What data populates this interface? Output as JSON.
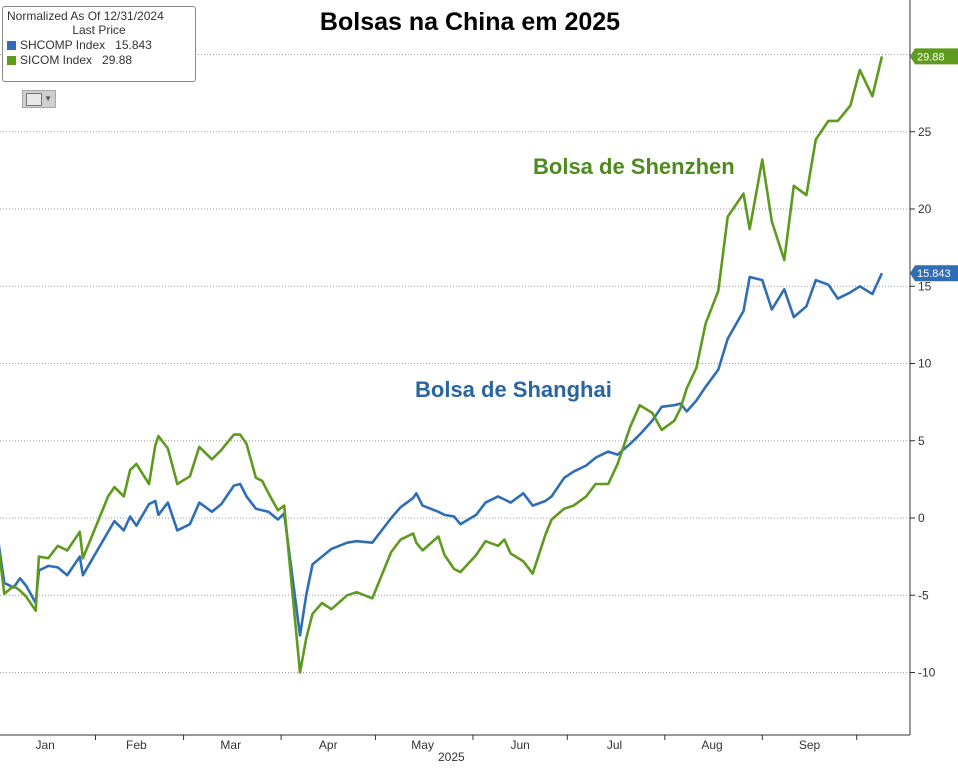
{
  "title": "Bolsas na China em 2025",
  "legend": {
    "header": "Normalized As Of 12/31/2024",
    "subheader": "Last Price",
    "items": [
      {
        "label": "SHCOMP Index",
        "value": "15.843",
        "color": "#2f6eb5"
      },
      {
        "label": "SICOM Index",
        "value": "29.88",
        "color": "#5e9a1e"
      }
    ]
  },
  "annotations": {
    "shenzhen": "Bolsa de Shenzhen",
    "shanghai": "Bolsa de Shanghai"
  },
  "year_label": "2025",
  "toolbar_icon": "chart-type-icon",
  "chart_data": {
    "type": "line",
    "ylim": [
      -14,
      34
    ],
    "y_ticks": [
      -10,
      -5,
      0,
      5,
      10,
      15,
      20,
      25
    ],
    "y_tick_labels": [
      "-10",
      "-5",
      "0",
      "5",
      "10",
      "15",
      "20",
      "25"
    ],
    "x_ticks": [
      "Jan",
      "Feb",
      "Mar",
      "Apr",
      "May",
      "Jun",
      "Jul",
      "Aug",
      "Sep"
    ],
    "x_year": "2025",
    "grid": true,
    "legend_position": "top-left",
    "series": [
      {
        "name": "SHCOMP Index",
        "color": "#2f6eb5",
        "last_value": "15.843",
        "points": [
          [
            "2024-12-31",
            0
          ],
          [
            "2025-01-03",
            -4.2
          ],
          [
            "2025-01-06",
            -4.5
          ],
          [
            "2025-01-08",
            -3.9
          ],
          [
            "2025-01-10",
            -4.4
          ],
          [
            "2025-01-13",
            -5.5
          ],
          [
            "2025-01-14",
            -3.4
          ],
          [
            "2025-01-17",
            -3.1
          ],
          [
            "2025-01-20",
            -3.2
          ],
          [
            "2025-01-23",
            -3.7
          ],
          [
            "2025-01-27",
            -2.5
          ],
          [
            "2025-01-28",
            -3.7
          ],
          [
            "2025-02-05",
            -0.9
          ],
          [
            "2025-02-07",
            -0.2
          ],
          [
            "2025-02-10",
            -0.8
          ],
          [
            "2025-02-12",
            0.1
          ],
          [
            "2025-02-14",
            -0.5
          ],
          [
            "2025-02-18",
            0.9
          ],
          [
            "2025-02-20",
            1.1
          ],
          [
            "2025-02-21",
            0.2
          ],
          [
            "2025-02-24",
            1.0
          ],
          [
            "2025-02-27",
            -0.8
          ],
          [
            "2025-03-03",
            -0.4
          ],
          [
            "2025-03-06",
            1.0
          ],
          [
            "2025-03-10",
            0.4
          ],
          [
            "2025-03-13",
            0.9
          ],
          [
            "2025-03-17",
            2.1
          ],
          [
            "2025-03-19",
            2.2
          ],
          [
            "2025-03-21",
            1.4
          ],
          [
            "2025-03-24",
            0.6
          ],
          [
            "2025-03-26",
            0.5
          ],
          [
            "2025-03-28",
            0.4
          ],
          [
            "2025-03-31",
            -0.1
          ],
          [
            "2025-04-02",
            0.3
          ],
          [
            "2025-04-07",
            -7.6
          ],
          [
            "2025-04-09",
            -5.0
          ],
          [
            "2025-04-11",
            -3.0
          ],
          [
            "2025-04-14",
            -2.5
          ],
          [
            "2025-04-17",
            -2.0
          ],
          [
            "2025-04-22",
            -1.6
          ],
          [
            "2025-04-25",
            -1.5
          ],
          [
            "2025-04-30",
            -1.6
          ],
          [
            "2025-05-06",
            0.0
          ],
          [
            "2025-05-09",
            0.7
          ],
          [
            "2025-05-13",
            1.3
          ],
          [
            "2025-05-14",
            1.6
          ],
          [
            "2025-05-16",
            0.8
          ],
          [
            "2025-05-21",
            0.4
          ],
          [
            "2025-05-23",
            0.2
          ],
          [
            "2025-05-26",
            0.1
          ],
          [
            "2025-05-28",
            -0.4
          ],
          [
            "2025-06-02",
            0.2
          ],
          [
            "2025-06-05",
            1.0
          ],
          [
            "2025-06-09",
            1.4
          ],
          [
            "2025-06-11",
            1.2
          ],
          [
            "2025-06-13",
            1.0
          ],
          [
            "2025-06-17",
            1.6
          ],
          [
            "2025-06-20",
            0.8
          ],
          [
            "2025-06-24",
            1.1
          ],
          [
            "2025-06-26",
            1.4
          ],
          [
            "2025-06-30",
            2.6
          ],
          [
            "2025-07-03",
            3.0
          ],
          [
            "2025-07-07",
            3.4
          ],
          [
            "2025-07-10",
            3.9
          ],
          [
            "2025-07-14",
            4.3
          ],
          [
            "2025-07-17",
            4.1
          ],
          [
            "2025-07-21",
            4.8
          ],
          [
            "2025-07-24",
            5.4
          ],
          [
            "2025-07-28",
            6.3
          ],
          [
            "2025-07-31",
            7.2
          ],
          [
            "2025-08-04",
            7.3
          ],
          [
            "2025-08-06",
            7.4
          ],
          [
            "2025-08-08",
            6.9
          ],
          [
            "2025-08-11",
            7.6
          ],
          [
            "2025-08-14",
            8.5
          ],
          [
            "2025-08-18",
            9.6
          ],
          [
            "2025-08-21",
            11.6
          ],
          [
            "2025-08-26",
            13.4
          ],
          [
            "2025-08-28",
            15.6
          ],
          [
            "2025-09-01",
            15.4
          ],
          [
            "2025-09-04",
            13.5
          ],
          [
            "2025-09-08",
            14.8
          ],
          [
            "2025-09-11",
            13.0
          ],
          [
            "2025-09-15",
            13.7
          ],
          [
            "2025-09-18",
            15.4
          ],
          [
            "2025-09-22",
            15.1
          ],
          [
            "2025-09-25",
            14.2
          ],
          [
            "2025-09-29",
            14.6
          ],
          [
            "2025-10-02",
            15.0
          ],
          [
            "2025-10-06",
            14.5
          ],
          [
            "2025-10-09",
            15.843
          ]
        ]
      },
      {
        "name": "SICOM Index",
        "color": "#5e9a1e",
        "last_value": "29.88",
        "points": [
          [
            "2024-12-31",
            0
          ],
          [
            "2025-01-03",
            -4.9
          ],
          [
            "2025-01-06",
            -4.4
          ],
          [
            "2025-01-08",
            -4.7
          ],
          [
            "2025-01-10",
            -5.1
          ],
          [
            "2025-01-13",
            -6.0
          ],
          [
            "2025-01-14",
            -2.5
          ],
          [
            "2025-01-17",
            -2.6
          ],
          [
            "2025-01-20",
            -1.8
          ],
          [
            "2025-01-23",
            -2.1
          ],
          [
            "2025-01-27",
            -0.9
          ],
          [
            "2025-01-28",
            -2.6
          ],
          [
            "2025-02-05",
            1.4
          ],
          [
            "2025-02-07",
            2.0
          ],
          [
            "2025-02-10",
            1.4
          ],
          [
            "2025-02-12",
            3.1
          ],
          [
            "2025-02-14",
            3.5
          ],
          [
            "2025-02-18",
            2.2
          ],
          [
            "2025-02-20",
            4.7
          ],
          [
            "2025-02-21",
            5.3
          ],
          [
            "2025-02-24",
            4.5
          ],
          [
            "2025-02-27",
            2.2
          ],
          [
            "2025-03-03",
            2.7
          ],
          [
            "2025-03-06",
            4.6
          ],
          [
            "2025-03-10",
            3.8
          ],
          [
            "2025-03-13",
            4.4
          ],
          [
            "2025-03-17",
            5.4
          ],
          [
            "2025-03-19",
            5.4
          ],
          [
            "2025-03-21",
            4.8
          ],
          [
            "2025-03-24",
            2.6
          ],
          [
            "2025-03-26",
            2.4
          ],
          [
            "2025-03-28",
            1.6
          ],
          [
            "2025-03-31",
            0.5
          ],
          [
            "2025-04-02",
            0.8
          ],
          [
            "2025-04-07",
            -10.0
          ],
          [
            "2025-04-09",
            -7.8
          ],
          [
            "2025-04-11",
            -6.2
          ],
          [
            "2025-04-14",
            -5.5
          ],
          [
            "2025-04-17",
            -5.9
          ],
          [
            "2025-04-22",
            -5.0
          ],
          [
            "2025-04-25",
            -4.8
          ],
          [
            "2025-04-30",
            -5.2
          ],
          [
            "2025-05-06",
            -2.2
          ],
          [
            "2025-05-09",
            -1.4
          ],
          [
            "2025-05-13",
            -1.0
          ],
          [
            "2025-05-14",
            -1.6
          ],
          [
            "2025-05-16",
            -2.1
          ],
          [
            "2025-05-21",
            -1.2
          ],
          [
            "2025-05-23",
            -2.4
          ],
          [
            "2025-05-26",
            -3.3
          ],
          [
            "2025-05-28",
            -3.5
          ],
          [
            "2025-06-02",
            -2.4
          ],
          [
            "2025-06-05",
            -1.5
          ],
          [
            "2025-06-09",
            -1.8
          ],
          [
            "2025-06-11",
            -1.4
          ],
          [
            "2025-06-13",
            -2.3
          ],
          [
            "2025-06-17",
            -2.8
          ],
          [
            "2025-06-20",
            -3.6
          ],
          [
            "2025-06-24",
            -1.1
          ],
          [
            "2025-06-26",
            -0.1
          ],
          [
            "2025-06-30",
            0.6
          ],
          [
            "2025-07-03",
            0.8
          ],
          [
            "2025-07-07",
            1.4
          ],
          [
            "2025-07-10",
            2.2
          ],
          [
            "2025-07-14",
            2.2
          ],
          [
            "2025-07-17",
            3.5
          ],
          [
            "2025-07-21",
            5.9
          ],
          [
            "2025-07-24",
            7.3
          ],
          [
            "2025-07-28",
            6.8
          ],
          [
            "2025-07-31",
            5.7
          ],
          [
            "2025-08-04",
            6.3
          ],
          [
            "2025-08-06",
            7.1
          ],
          [
            "2025-08-08",
            8.4
          ],
          [
            "2025-08-11",
            9.7
          ],
          [
            "2025-08-14",
            12.6
          ],
          [
            "2025-08-18",
            14.7
          ],
          [
            "2025-08-21",
            19.5
          ],
          [
            "2025-08-26",
            21.0
          ],
          [
            "2025-08-28",
            18.7
          ],
          [
            "2025-09-01",
            23.2
          ],
          [
            "2025-09-04",
            19.2
          ],
          [
            "2025-09-08",
            16.7
          ],
          [
            "2025-09-11",
            21.5
          ],
          [
            "2025-09-15",
            20.9
          ],
          [
            "2025-09-18",
            24.5
          ],
          [
            "2025-09-22",
            25.7
          ],
          [
            "2025-09-25",
            25.7
          ],
          [
            "2025-09-29",
            26.7
          ],
          [
            "2025-10-02",
            29.0
          ],
          [
            "2025-10-06",
            27.3
          ],
          [
            "2025-10-09",
            29.88
          ]
        ]
      }
    ]
  }
}
